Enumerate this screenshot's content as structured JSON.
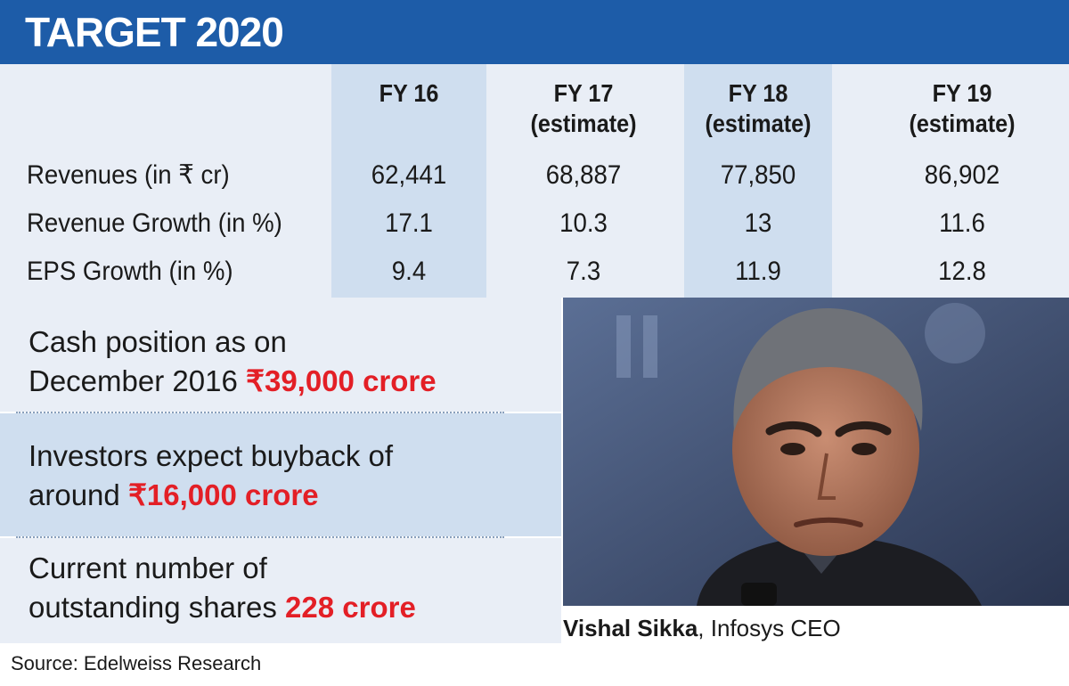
{
  "header": {
    "title": "TARGET 2020"
  },
  "table": {
    "columns": [
      {
        "line1": "FY 16",
        "line2": ""
      },
      {
        "line1": "FY 17",
        "line2": "(estimate)"
      },
      {
        "line1": "FY 18",
        "line2": "(estimate)"
      },
      {
        "line1": "FY 19",
        "line2": "(estimate)"
      }
    ],
    "rows": [
      {
        "label": "Revenues (in ₹ cr)",
        "values": [
          "62,441",
          "68,887",
          "77,850",
          "86,902"
        ]
      },
      {
        "label": "Revenue Growth (in %)",
        "values": [
          "17.1",
          "10.3",
          "13",
          "11.6"
        ]
      },
      {
        "label": "EPS Growth (in %)",
        "values": [
          "9.4",
          "7.3",
          "11.9",
          "12.8"
        ]
      }
    ]
  },
  "facts": [
    {
      "line1": "Cash position as on",
      "line2_text": "December 2016 ",
      "highlight": "₹39,000 crore"
    },
    {
      "line1": "Investors expect buyback of",
      "line2_text": "around ",
      "highlight": "₹16,000 crore"
    },
    {
      "line1": "Current number of",
      "line2_text": "outstanding shares ",
      "highlight": "228 crore"
    }
  ],
  "caption": {
    "name": "Vishal Sikka",
    "separator": ", ",
    "role": "Infosys CEO"
  },
  "source": "Source: Edelweiss Research",
  "colors": {
    "header": "#1d5ca8",
    "highlight": "#e31f26",
    "table_bg": "#e9eef6",
    "column_shade": "#cfdeef"
  }
}
